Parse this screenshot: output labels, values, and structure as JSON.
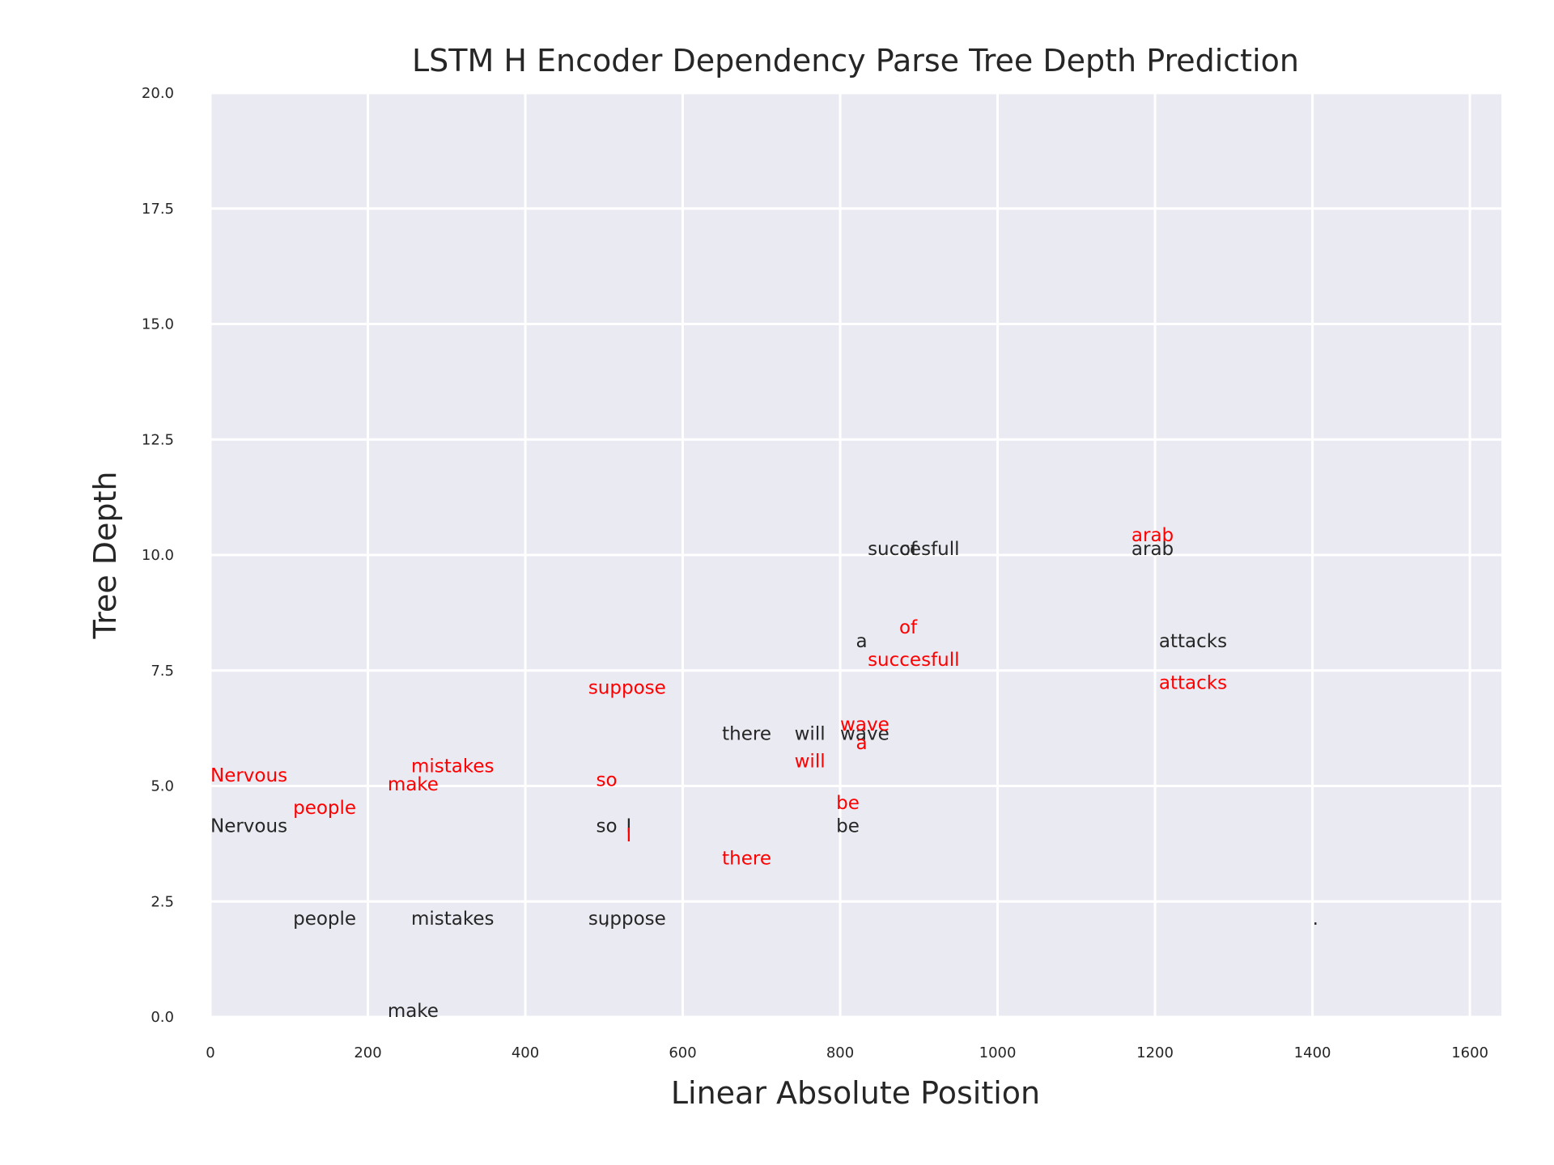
{
  "chart_data": {
    "type": "scatter",
    "title": "LSTM H Encoder Dependency Parse Tree Depth Prediction",
    "xlabel": "Linear Absolute Position",
    "ylabel": "Tree Depth",
    "xlim": [
      0,
      1640
    ],
    "ylim": [
      0,
      20
    ],
    "xticks": [
      "0",
      "200",
      "400",
      "600",
      "800",
      "1000",
      "1200",
      "1400",
      "1600"
    ],
    "yticks": [
      "0.0",
      "2.5",
      "5.0",
      "7.5",
      "10.0",
      "12.5",
      "15.0",
      "17.5",
      "20.0"
    ],
    "grid": true,
    "series": [
      {
        "color": "#262626",
        "points": [
          {
            "label": "Nervous",
            "x": 0,
            "y": 4
          },
          {
            "label": "people",
            "x": 105,
            "y": 2
          },
          {
            "label": "make",
            "x": 225,
            "y": 0
          },
          {
            "label": "mistakes",
            "x": 255,
            "y": 2
          },
          {
            "label": ",",
            "x": 500,
            "y": 2
          },
          {
            "label": "so",
            "x": 490,
            "y": 4
          },
          {
            "label": "I",
            "x": 528,
            "y": 4
          },
          {
            "label": "suppose",
            "x": 480,
            "y": 2
          },
          {
            "label": "there",
            "x": 650,
            "y": 6
          },
          {
            "label": "will",
            "x": 742,
            "y": 6
          },
          {
            "label": "be",
            "x": 795,
            "y": 4
          },
          {
            "label": "a",
            "x": 820,
            "y": 8
          },
          {
            "label": "wave",
            "x": 800,
            "y": 6
          },
          {
            "label": "of",
            "x": 875,
            "y": 10
          },
          {
            "label": "succesfull",
            "x": 835,
            "y": 10
          },
          {
            "label": "arab",
            "x": 1170,
            "y": 10
          },
          {
            "label": "attacks",
            "x": 1205,
            "y": 8
          },
          {
            "label": ".",
            "x": 1400,
            "y": 2
          }
        ]
      },
      {
        "color": "#ff0000",
        "points": [
          {
            "label": "Nervous",
            "x": 0,
            "y": 5.1
          },
          {
            "label": "people",
            "x": 105,
            "y": 4.4
          },
          {
            "label": "make",
            "x": 225,
            "y": 4.9
          },
          {
            "label": "mistakes",
            "x": 255,
            "y": 5.3
          },
          {
            "label": "so",
            "x": 490,
            "y": 5.0
          },
          {
            "label": "I",
            "x": 528,
            "y": 3.8
          },
          {
            "label": "suppose",
            "x": 480,
            "y": 7.0
          },
          {
            "label": "there",
            "x": 650,
            "y": 3.3
          },
          {
            "label": "will",
            "x": 742,
            "y": 5.4
          },
          {
            "label": "be",
            "x": 795,
            "y": 4.5
          },
          {
            "label": "a",
            "x": 820,
            "y": 5.8
          },
          {
            "label": "wave",
            "x": 800,
            "y": 6.2
          },
          {
            "label": "of",
            "x": 875,
            "y": 8.3
          },
          {
            "label": "succesfull",
            "x": 835,
            "y": 7.6
          },
          {
            "label": "arab",
            "x": 1170,
            "y": 10.3
          },
          {
            "label": "attacks",
            "x": 1205,
            "y": 7.1
          }
        ]
      }
    ]
  }
}
